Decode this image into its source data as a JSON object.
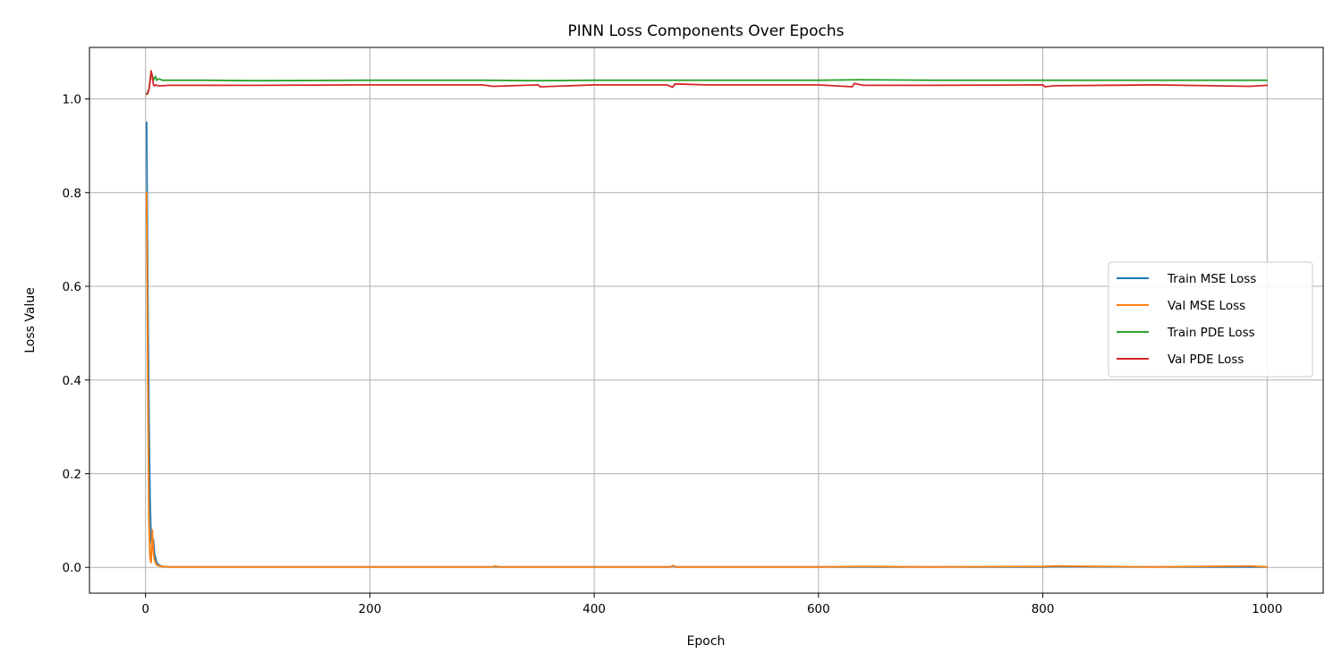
{
  "chart_data": {
    "type": "line",
    "title": "PINN Loss Components Over Epochs",
    "xlabel": "Epoch",
    "ylabel": "Loss Value",
    "xlim": [
      -50,
      1050
    ],
    "ylim": [
      -0.055,
      1.11
    ],
    "xticks": [
      0,
      200,
      400,
      600,
      800,
      1000
    ],
    "xtick_labels": [
      "0",
      "200",
      "400",
      "600",
      "800",
      "1000"
    ],
    "yticks": [
      0.0,
      0.2,
      0.4,
      0.6,
      0.8,
      1.0
    ],
    "ytick_labels": [
      "0.0",
      "0.2",
      "0.4",
      "0.6",
      "0.8",
      "1.0"
    ],
    "grid": true,
    "legend_position": "center-right",
    "series": [
      {
        "name": "Train MSE Loss",
        "color": "#1f77b4",
        "x": [
          1,
          2,
          3,
          4,
          5,
          6,
          7,
          8,
          9,
          10,
          12,
          15,
          20,
          30,
          50,
          100,
          200,
          310,
          312,
          315,
          400,
          468,
          470,
          473,
          500,
          600,
          640,
          700,
          800,
          810,
          900,
          985,
          1000
        ],
        "y": [
          0.95,
          0.6,
          0.35,
          0.15,
          0.06,
          0.04,
          0.06,
          0.03,
          0.02,
          0.01,
          0.005,
          0.002,
          0.001,
          0.001,
          0.001,
          0.001,
          0.001,
          0.001,
          0.002,
          0.001,
          0.001,
          0.001,
          0.003,
          0.001,
          0.001,
          0.001,
          0.001,
          0.001,
          0.001,
          0.002,
          0.001,
          0.001,
          0.001
        ]
      },
      {
        "name": "Val MSE Loss",
        "color": "#ff7f0e",
        "x": [
          1,
          2,
          3,
          4,
          5,
          6,
          7,
          8,
          9,
          10,
          12,
          15,
          20,
          30,
          50,
          100,
          200,
          310,
          312,
          315,
          400,
          468,
          470,
          473,
          500,
          600,
          640,
          700,
          800,
          810,
          900,
          985,
          1000
        ],
        "y": [
          0.8,
          0.4,
          0.1,
          0.02,
          0.01,
          0.08,
          0.03,
          0.015,
          0.01,
          0.005,
          0.003,
          0.002,
          0.001,
          0.001,
          0.001,
          0.001,
          0.001,
          0.001,
          0.003,
          0.001,
          0.001,
          0.001,
          0.004,
          0.001,
          0.001,
          0.001,
          0.002,
          0.001,
          0.002,
          0.003,
          0.001,
          0.003,
          0.001
        ]
      },
      {
        "name": "Train PDE Loss",
        "color": "#2ca02c",
        "x": [
          1,
          2,
          3,
          4,
          5,
          6,
          7,
          8,
          9,
          10,
          12,
          15,
          20,
          30,
          50,
          100,
          200,
          300,
          350,
          400,
          470,
          500,
          600,
          635,
          700,
          800,
          900,
          1000
        ],
        "y": [
          1.01,
          1.015,
          1.02,
          1.04,
          1.058,
          1.05,
          1.04,
          1.045,
          1.048,
          1.04,
          1.043,
          1.04,
          1.04,
          1.04,
          1.04,
          1.039,
          1.04,
          1.04,
          1.039,
          1.04,
          1.04,
          1.04,
          1.04,
          1.041,
          1.04,
          1.04,
          1.04,
          1.04
        ]
      },
      {
        "name": "Val PDE Loss",
        "color": "#d62728",
        "x": [
          1,
          2,
          3,
          4,
          5,
          6,
          7,
          8,
          9,
          10,
          12,
          15,
          20,
          30,
          50,
          100,
          200,
          300,
          310,
          350,
          352,
          400,
          465,
          470,
          472,
          500,
          600,
          630,
          632,
          640,
          700,
          800,
          802,
          810,
          900,
          985,
          1000
        ],
        "y": [
          1.01,
          1.012,
          1.02,
          1.035,
          1.06,
          1.048,
          1.03,
          1.028,
          1.03,
          1.029,
          1.028,
          1.028,
          1.029,
          1.029,
          1.029,
          1.029,
          1.03,
          1.03,
          1.027,
          1.03,
          1.026,
          1.03,
          1.03,
          1.025,
          1.032,
          1.03,
          1.03,
          1.026,
          1.033,
          1.029,
          1.029,
          1.03,
          1.026,
          1.028,
          1.03,
          1.027,
          1.029
        ]
      }
    ]
  }
}
